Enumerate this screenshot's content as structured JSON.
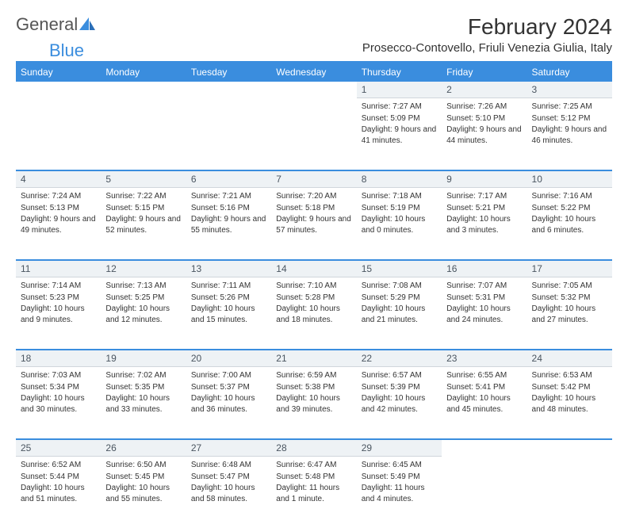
{
  "brand": {
    "part1": "General",
    "part2": "Blue"
  },
  "title": "February 2024",
  "location": "Prosecco-Contovello, Friuli Venezia Giulia, Italy",
  "colors": {
    "accent": "#3a8dde",
    "header_bg": "#3a8dde",
    "header_text": "#ffffff",
    "daynum_bg": "#eef2f5",
    "daynum_text": "#4a5560",
    "body_text": "#333333",
    "border": "#3a8dde"
  },
  "weekdays": [
    "Sunday",
    "Monday",
    "Tuesday",
    "Wednesday",
    "Thursday",
    "Friday",
    "Saturday"
  ],
  "weeks": [
    [
      {
        "num": "",
        "sunrise": "",
        "sunset": "",
        "daylight": ""
      },
      {
        "num": "",
        "sunrise": "",
        "sunset": "",
        "daylight": ""
      },
      {
        "num": "",
        "sunrise": "",
        "sunset": "",
        "daylight": ""
      },
      {
        "num": "",
        "sunrise": "",
        "sunset": "",
        "daylight": ""
      },
      {
        "num": "1",
        "sunrise": "Sunrise: 7:27 AM",
        "sunset": "Sunset: 5:09 PM",
        "daylight": "Daylight: 9 hours and 41 minutes."
      },
      {
        "num": "2",
        "sunrise": "Sunrise: 7:26 AM",
        "sunset": "Sunset: 5:10 PM",
        "daylight": "Daylight: 9 hours and 44 minutes."
      },
      {
        "num": "3",
        "sunrise": "Sunrise: 7:25 AM",
        "sunset": "Sunset: 5:12 PM",
        "daylight": "Daylight: 9 hours and 46 minutes."
      }
    ],
    [
      {
        "num": "4",
        "sunrise": "Sunrise: 7:24 AM",
        "sunset": "Sunset: 5:13 PM",
        "daylight": "Daylight: 9 hours and 49 minutes."
      },
      {
        "num": "5",
        "sunrise": "Sunrise: 7:22 AM",
        "sunset": "Sunset: 5:15 PM",
        "daylight": "Daylight: 9 hours and 52 minutes."
      },
      {
        "num": "6",
        "sunrise": "Sunrise: 7:21 AM",
        "sunset": "Sunset: 5:16 PM",
        "daylight": "Daylight: 9 hours and 55 minutes."
      },
      {
        "num": "7",
        "sunrise": "Sunrise: 7:20 AM",
        "sunset": "Sunset: 5:18 PM",
        "daylight": "Daylight: 9 hours and 57 minutes."
      },
      {
        "num": "8",
        "sunrise": "Sunrise: 7:18 AM",
        "sunset": "Sunset: 5:19 PM",
        "daylight": "Daylight: 10 hours and 0 minutes."
      },
      {
        "num": "9",
        "sunrise": "Sunrise: 7:17 AM",
        "sunset": "Sunset: 5:21 PM",
        "daylight": "Daylight: 10 hours and 3 minutes."
      },
      {
        "num": "10",
        "sunrise": "Sunrise: 7:16 AM",
        "sunset": "Sunset: 5:22 PM",
        "daylight": "Daylight: 10 hours and 6 minutes."
      }
    ],
    [
      {
        "num": "11",
        "sunrise": "Sunrise: 7:14 AM",
        "sunset": "Sunset: 5:23 PM",
        "daylight": "Daylight: 10 hours and 9 minutes."
      },
      {
        "num": "12",
        "sunrise": "Sunrise: 7:13 AM",
        "sunset": "Sunset: 5:25 PM",
        "daylight": "Daylight: 10 hours and 12 minutes."
      },
      {
        "num": "13",
        "sunrise": "Sunrise: 7:11 AM",
        "sunset": "Sunset: 5:26 PM",
        "daylight": "Daylight: 10 hours and 15 minutes."
      },
      {
        "num": "14",
        "sunrise": "Sunrise: 7:10 AM",
        "sunset": "Sunset: 5:28 PM",
        "daylight": "Daylight: 10 hours and 18 minutes."
      },
      {
        "num": "15",
        "sunrise": "Sunrise: 7:08 AM",
        "sunset": "Sunset: 5:29 PM",
        "daylight": "Daylight: 10 hours and 21 minutes."
      },
      {
        "num": "16",
        "sunrise": "Sunrise: 7:07 AM",
        "sunset": "Sunset: 5:31 PM",
        "daylight": "Daylight: 10 hours and 24 minutes."
      },
      {
        "num": "17",
        "sunrise": "Sunrise: 7:05 AM",
        "sunset": "Sunset: 5:32 PM",
        "daylight": "Daylight: 10 hours and 27 minutes."
      }
    ],
    [
      {
        "num": "18",
        "sunrise": "Sunrise: 7:03 AM",
        "sunset": "Sunset: 5:34 PM",
        "daylight": "Daylight: 10 hours and 30 minutes."
      },
      {
        "num": "19",
        "sunrise": "Sunrise: 7:02 AM",
        "sunset": "Sunset: 5:35 PM",
        "daylight": "Daylight: 10 hours and 33 minutes."
      },
      {
        "num": "20",
        "sunrise": "Sunrise: 7:00 AM",
        "sunset": "Sunset: 5:37 PM",
        "daylight": "Daylight: 10 hours and 36 minutes."
      },
      {
        "num": "21",
        "sunrise": "Sunrise: 6:59 AM",
        "sunset": "Sunset: 5:38 PM",
        "daylight": "Daylight: 10 hours and 39 minutes."
      },
      {
        "num": "22",
        "sunrise": "Sunrise: 6:57 AM",
        "sunset": "Sunset: 5:39 PM",
        "daylight": "Daylight: 10 hours and 42 minutes."
      },
      {
        "num": "23",
        "sunrise": "Sunrise: 6:55 AM",
        "sunset": "Sunset: 5:41 PM",
        "daylight": "Daylight: 10 hours and 45 minutes."
      },
      {
        "num": "24",
        "sunrise": "Sunrise: 6:53 AM",
        "sunset": "Sunset: 5:42 PM",
        "daylight": "Daylight: 10 hours and 48 minutes."
      }
    ],
    [
      {
        "num": "25",
        "sunrise": "Sunrise: 6:52 AM",
        "sunset": "Sunset: 5:44 PM",
        "daylight": "Daylight: 10 hours and 51 minutes."
      },
      {
        "num": "26",
        "sunrise": "Sunrise: 6:50 AM",
        "sunset": "Sunset: 5:45 PM",
        "daylight": "Daylight: 10 hours and 55 minutes."
      },
      {
        "num": "27",
        "sunrise": "Sunrise: 6:48 AM",
        "sunset": "Sunset: 5:47 PM",
        "daylight": "Daylight: 10 hours and 58 minutes."
      },
      {
        "num": "28",
        "sunrise": "Sunrise: 6:47 AM",
        "sunset": "Sunset: 5:48 PM",
        "daylight": "Daylight: 11 hours and 1 minute."
      },
      {
        "num": "29",
        "sunrise": "Sunrise: 6:45 AM",
        "sunset": "Sunset: 5:49 PM",
        "daylight": "Daylight: 11 hours and 4 minutes."
      },
      {
        "num": "",
        "sunrise": "",
        "sunset": "",
        "daylight": ""
      },
      {
        "num": "",
        "sunrise": "",
        "sunset": "",
        "daylight": ""
      }
    ]
  ]
}
